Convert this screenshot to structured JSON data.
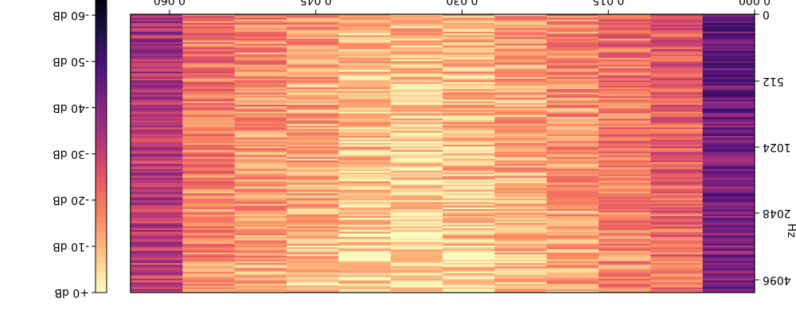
{
  "chart_data": {
    "type": "heatmap",
    "title": "",
    "image_orientation": "rotated 180 degrees",
    "x_axis": {
      "label": "",
      "tick_labels": [
        "0.000",
        "0.015",
        "0.030",
        "0.045",
        "0.060"
      ],
      "tick_values": [
        0.0,
        0.015,
        0.03,
        0.045,
        0.06
      ],
      "range": [
        0.0,
        0.064
      ]
    },
    "y_axis": {
      "label": "Hz",
      "scale": "log2",
      "tick_labels": [
        "0",
        "512",
        "1024",
        "2048",
        "4096"
      ],
      "tick_values": [
        0,
        512,
        1024,
        2048,
        4096
      ]
    },
    "colorbar": {
      "colormap": "magma",
      "tick_labels": [
        "+0 dB",
        "-10 dB",
        "-20 dB",
        "-30 dB",
        "-40 dB",
        "-50 dB",
        "-60 dB"
      ],
      "tick_values": [
        0,
        -10,
        -20,
        -30,
        -40,
        -50,
        -60
      ],
      "range": [
        -65,
        0
      ]
    },
    "frame_times": [
      0.0,
      0.0058,
      0.0116,
      0.0174,
      0.0232,
      0.029,
      0.0348,
      0.0406,
      0.0464,
      0.0522,
      0.058,
      0.0638
    ],
    "frame_mean_db": [
      -40,
      -20,
      -15,
      -12,
      -9,
      -6,
      -4,
      -5,
      -9,
      -12,
      -15,
      -30
    ],
    "colors": {
      "magma_stops": [
        "#000004",
        "#1c1044",
        "#4f127b",
        "#812581",
        "#b5367a",
        "#e55964",
        "#fb8761",
        "#fec287",
        "#fcfdbf"
      ]
    }
  }
}
